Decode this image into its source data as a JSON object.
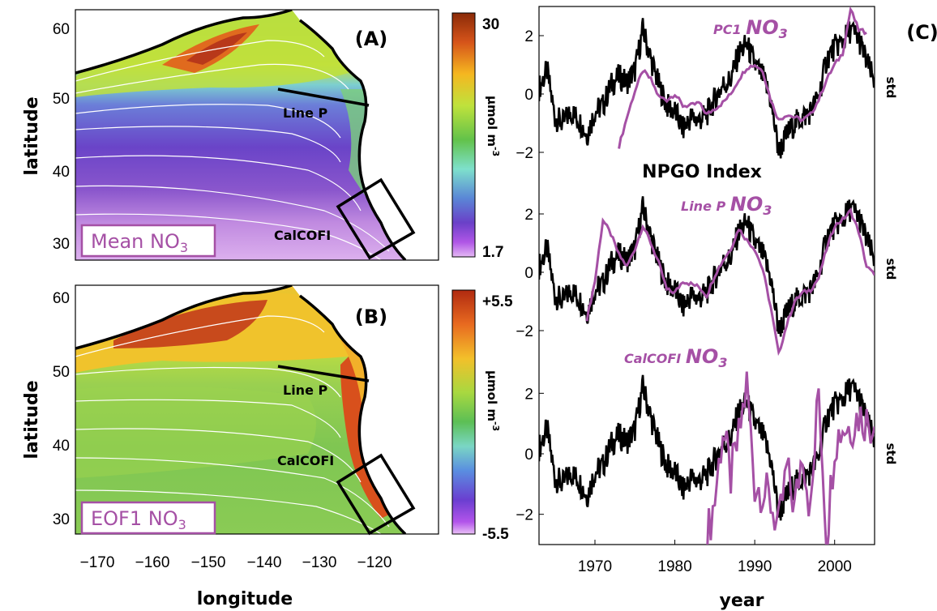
{
  "colors": {
    "accent": "#a550a5",
    "index_line": "#000000"
  },
  "maps": {
    "ylabel": "latitude",
    "xlabel": "longitude",
    "xticks": [
      "−170",
      "−160",
      "−150",
      "−140",
      "−130",
      "−120"
    ],
    "yticks": [
      "60",
      "50",
      "40",
      "30"
    ],
    "line_p": "Line P",
    "calcofi": "CalCOFI",
    "panel_a": {
      "label": "(A)",
      "box_prefix": "Mean NO",
      "box_sub": "3",
      "cbar_max": "30",
      "cbar_min": "1.7",
      "cbar_label": "μmol m"
    },
    "panel_b": {
      "label": "(B)",
      "box_prefix": "EOF1 NO",
      "box_sub": "3",
      "cbar_max": "+5.5",
      "cbar_min": "-5.5",
      "cbar_label": "μmol m"
    }
  },
  "ts": {
    "panel_label": "(C)",
    "xlabel": "year",
    "xticks": [
      "1970",
      "1980",
      "1990",
      "2000"
    ],
    "yticks": [
      "2",
      "0",
      "−2"
    ],
    "std": "std",
    "npgo_label": "NPGO Index",
    "s1_a": "PC1 ",
    "s1_b": "NO",
    "s1_c": "3",
    "s2_a": "Line P ",
    "s2_b": "NO",
    "s2_c": "3",
    "s3_a": "CalCOFI ",
    "s3_b": "NO",
    "s3_c": "3"
  },
  "chart_data": [
    {
      "type": "heatmap",
      "title": "Mean NO3",
      "xlabel": "longitude",
      "ylabel": "latitude",
      "xlim": [
        -175,
        -110
      ],
      "ylim": [
        27,
        61
      ],
      "colorbar": {
        "min": 1.7,
        "max": 30,
        "units": "μmol m-3"
      }
    },
    {
      "type": "heatmap",
      "title": "EOF1 NO3",
      "xlabel": "longitude",
      "ylabel": "latitude",
      "xlim": [
        -175,
        -110
      ],
      "ylim": [
        27,
        61
      ],
      "colorbar": {
        "min": -5.5,
        "max": 5.5,
        "units": "μmol m-3"
      }
    },
    {
      "type": "line",
      "xlabel": "year",
      "ylabel": "std",
      "xlim": [
        1963,
        2005
      ],
      "ylim": [
        -3,
        3
      ],
      "series": [
        {
          "name": "NPGO Index",
          "x": [
            1963,
            1964,
            1965,
            1966,
            1967,
            1968,
            1969,
            1970,
            1971,
            1972,
            1973,
            1974,
            1975,
            1976,
            1977,
            1978,
            1979,
            1980,
            1981,
            1982,
            1983,
            1984,
            1985,
            1986,
            1987,
            1988,
            1989,
            1990,
            1991,
            1992,
            1993,
            1994,
            1995,
            1996,
            1997,
            1998,
            1999,
            2000,
            2001,
            2002,
            2003,
            2004,
            2005
          ],
          "y": [
            0.2,
            0.8,
            -0.8,
            -1.0,
            -0.6,
            -0.9,
            -1.4,
            -0.6,
            -0.4,
            0.3,
            0.6,
            0.4,
            0.8,
            2.2,
            1.2,
            0.3,
            -0.4,
            -0.6,
            -1.2,
            -0.8,
            -0.9,
            -0.7,
            -0.2,
            0.3,
            0.5,
            1.4,
            1.7,
            1.0,
            0.6,
            -0.2,
            -2.0,
            -1.4,
            -1.0,
            -0.8,
            -0.6,
            -0.1,
            1.2,
            1.6,
            1.8,
            2.2,
            1.9,
            1.1,
            0.4
          ]
        },
        {
          "name": "PC1 NO3",
          "x": [
            1973,
            1974,
            1975,
            1976,
            1977,
            1978,
            1979,
            1980,
            1981,
            1982,
            1983,
            1984,
            1985,
            1986,
            1987,
            1988,
            1989,
            1990,
            1991,
            1992,
            1993,
            1994,
            1995,
            1996,
            1997,
            1998,
            1999,
            2000,
            2001,
            2002,
            2003,
            2004
          ],
          "y": [
            -1.8,
            -0.8,
            0.1,
            0.8,
            0.5,
            -0.1,
            -0.2,
            0.0,
            -0.4,
            -0.4,
            -0.3,
            -0.7,
            -0.5,
            -0.3,
            0.0,
            0.5,
            0.9,
            1.0,
            0.8,
            -0.2,
            -0.9,
            -0.7,
            -0.8,
            -0.9,
            -0.7,
            -0.2,
            0.5,
            1.0,
            1.4,
            2.9,
            2.2,
            2.1
          ]
        },
        {
          "name": "Line P NO3",
          "x": [
            1969,
            1970,
            1971,
            1972,
            1973,
            1974,
            1975,
            1976,
            1977,
            1978,
            1979,
            1980,
            1981,
            1982,
            1983,
            1984,
            1985,
            1986,
            1987,
            1988,
            1989,
            1990,
            1991,
            1992,
            1993,
            1994,
            1995,
            1996,
            1997,
            1998,
            1999,
            2000,
            2001,
            2002,
            2003,
            2004,
            2005
          ],
          "y": [
            -1.6,
            -0.3,
            1.8,
            1.3,
            0.6,
            0.2,
            0.8,
            1.6,
            1.0,
            0.3,
            -0.6,
            -0.7,
            -0.3,
            -0.4,
            -0.5,
            -0.8,
            -0.1,
            0.4,
            0.8,
            1.5,
            1.1,
            0.8,
            0.1,
            -1.2,
            -2.8,
            -1.8,
            -1.0,
            -0.7,
            -0.6,
            -0.2,
            0.8,
            1.6,
            1.8,
            2.1,
            1.4,
            0.2,
            -0.1
          ]
        },
        {
          "name": "CalCOFI NO3",
          "x": [
            1984,
            1985,
            1986,
            1987,
            1988,
            1989,
            1990,
            1991,
            1992,
            1993,
            1994,
            1995,
            1996,
            1997,
            1998,
            1999,
            2000,
            2001,
            2002,
            2003,
            2004,
            2005
          ],
          "y": [
            -2.8,
            -1.5,
            0.8,
            -0.8,
            0.5,
            2.3,
            -1.0,
            -1.2,
            -1.6,
            -2.5,
            -0.5,
            -1.8,
            0.2,
            -2.0,
            2.2,
            -2.8,
            0.4,
            0.9,
            0.9,
            1.3,
            1.1,
            0.9
          ]
        }
      ]
    }
  ]
}
